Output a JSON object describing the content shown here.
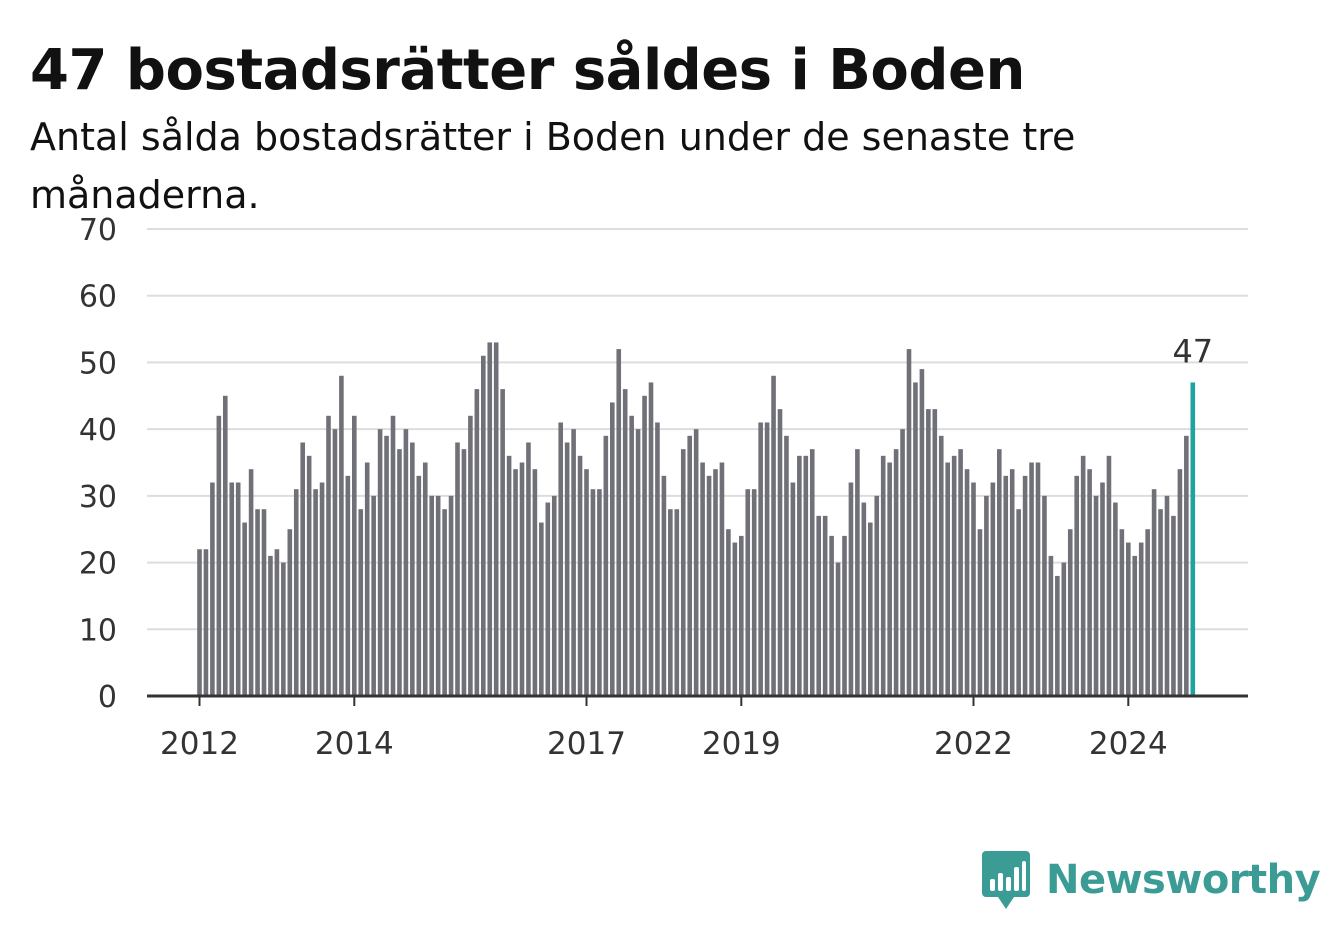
{
  "header": {
    "title": "47 bostadsrätter såldes i Boden",
    "subtitle": "Antal sålda bostadsrätter i Boden under de senaste tre månaderna."
  },
  "brand": {
    "name": "Newsworthy",
    "icon": "newsworthy-logo-icon",
    "color": "#3a9c95"
  },
  "colors": {
    "bar": "#707078",
    "highlight": "#1fa39c",
    "grid": "#dddddd",
    "axis": "#333333"
  },
  "chart_data": {
    "type": "bar",
    "title": "47 bostadsrätter såldes i Boden",
    "xlabel": "",
    "ylabel": "",
    "ylim": [
      0,
      70
    ],
    "yticks": [
      "0",
      "10",
      "20",
      "30",
      "40",
      "50",
      "60",
      "70"
    ],
    "xticks": [
      {
        "label": "2012",
        "index": 0
      },
      {
        "label": "2014",
        "index": 24
      },
      {
        "label": "2017",
        "index": 60
      },
      {
        "label": "2019",
        "index": 84
      },
      {
        "label": "2022",
        "index": 120
      },
      {
        "label": "2024",
        "index": 144
      }
    ],
    "grid": true,
    "legend": "none",
    "annotation": {
      "text": "47",
      "index": 154
    },
    "values": [
      22,
      22,
      32,
      42,
      45,
      32,
      32,
      26,
      34,
      28,
      28,
      21,
      22,
      20,
      25,
      31,
      38,
      36,
      31,
      32,
      42,
      40,
      48,
      33,
      42,
      28,
      35,
      30,
      40,
      39,
      42,
      37,
      40,
      38,
      33,
      35,
      30,
      30,
      28,
      30,
      38,
      37,
      42,
      46,
      51,
      53,
      53,
      46,
      36,
      34,
      35,
      38,
      34,
      26,
      29,
      30,
      41,
      38,
      40,
      36,
      34,
      31,
      31,
      39,
      44,
      52,
      46,
      42,
      40,
      45,
      47,
      41,
      33,
      28,
      28,
      37,
      39,
      40,
      35,
      33,
      34,
      35,
      25,
      23,
      24,
      31,
      31,
      41,
      41,
      48,
      43,
      39,
      32,
      36,
      36,
      37,
      27,
      27,
      24,
      20,
      24,
      32,
      37,
      29,
      26,
      30,
      36,
      35,
      37,
      40,
      52,
      47,
      49,
      43,
      43,
      39,
      35,
      36,
      37,
      34,
      32,
      25,
      30,
      32,
      37,
      33,
      34,
      28,
      33,
      35,
      35,
      30,
      21,
      18,
      20,
      25,
      33,
      36,
      34,
      30,
      32,
      36,
      29,
      25,
      23,
      21,
      23,
      25,
      31,
      28,
      30,
      27,
      34,
      39,
      47
    ]
  }
}
